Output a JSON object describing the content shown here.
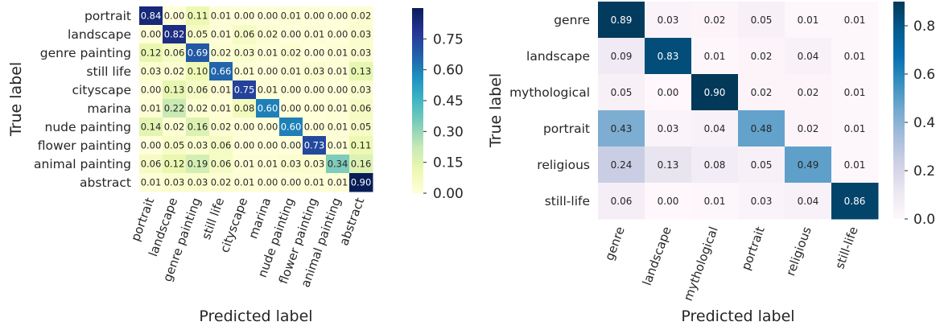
{
  "chart_data": [
    {
      "type": "heatmap",
      "xlabel": "Predicted label",
      "ylabel": "True label",
      "categories": [
        "portrait",
        "landscape",
        "genre painting",
        "still life",
        "cityscape",
        "marina",
        "nude painting",
        "flower painting",
        "animal painting",
        "abstract"
      ],
      "values": [
        [
          0.84,
          0.0,
          0.11,
          0.01,
          0.0,
          0.0,
          0.01,
          0.0,
          0.0,
          0.02
        ],
        [
          0.0,
          0.82,
          0.05,
          0.01,
          0.06,
          0.02,
          0.0,
          0.01,
          0.0,
          0.03
        ],
        [
          0.12,
          0.06,
          0.69,
          0.02,
          0.03,
          0.01,
          0.02,
          0.0,
          0.01,
          0.03
        ],
        [
          0.03,
          0.02,
          0.1,
          0.66,
          0.01,
          0.0,
          0.01,
          0.03,
          0.01,
          0.13
        ],
        [
          0.0,
          0.13,
          0.06,
          0.01,
          0.75,
          0.01,
          0.0,
          0.0,
          0.0,
          0.03
        ],
        [
          0.01,
          0.22,
          0.02,
          0.01,
          0.08,
          0.6,
          0.0,
          0.0,
          0.01,
          0.06
        ],
        [
          0.14,
          0.02,
          0.16,
          0.02,
          0.0,
          0.0,
          0.6,
          0.0,
          0.01,
          0.05
        ],
        [
          0.0,
          0.05,
          0.03,
          0.06,
          0.0,
          0.0,
          0.0,
          0.73,
          0.01,
          0.11
        ],
        [
          0.06,
          0.12,
          0.19,
          0.06,
          0.01,
          0.01,
          0.03,
          0.03,
          0.34,
          0.16
        ],
        [
          0.01,
          0.03,
          0.03,
          0.02,
          0.01,
          0.0,
          0.0,
          0.01,
          0.01,
          0.9
        ]
      ],
      "colormap": "YlGnBu",
      "vlim": [
        0,
        0.9
      ],
      "colorbar_ticks": [
        "0.75",
        "0.60",
        "0.45",
        "0.30",
        "0.15",
        "0.00"
      ]
    },
    {
      "type": "heatmap",
      "xlabel": "Predicted label",
      "ylabel": "True label",
      "categories": [
        "genre",
        "landscape",
        "mythological",
        "portrait",
        "religious",
        "still-life"
      ],
      "values": [
        [
          0.89,
          0.03,
          0.02,
          0.05,
          0.01,
          0.01
        ],
        [
          0.09,
          0.83,
          0.01,
          0.02,
          0.04,
          0.01
        ],
        [
          0.05,
          0.0,
          0.9,
          0.02,
          0.02,
          0.01
        ],
        [
          0.43,
          0.03,
          0.04,
          0.48,
          0.02,
          0.01
        ],
        [
          0.24,
          0.13,
          0.08,
          0.05,
          0.49,
          0.01
        ],
        [
          0.06,
          0.0,
          0.01,
          0.03,
          0.04,
          0.86
        ]
      ],
      "colormap": "PuBu",
      "vlim": [
        0,
        0.9
      ],
      "colorbar_ticks": [
        "0.8",
        "0.6",
        "0.4",
        "0.2",
        "0.0"
      ]
    }
  ]
}
